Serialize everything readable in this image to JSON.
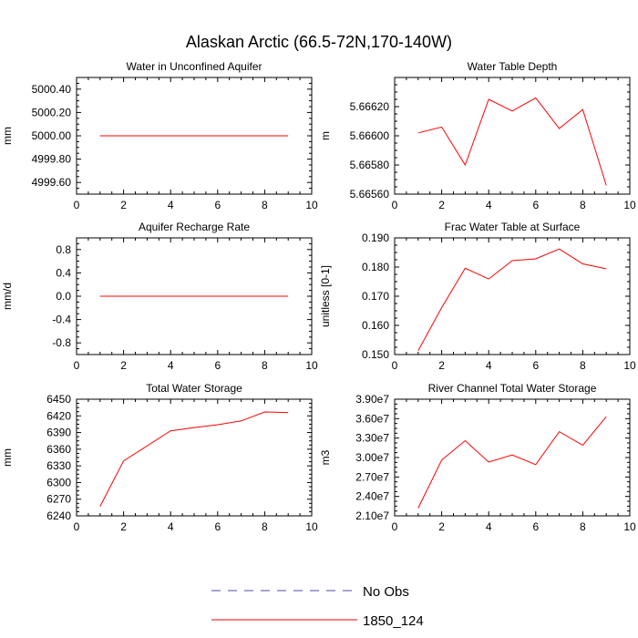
{
  "title": "Alaskan Arctic (66.5-72N,170-140W)",
  "legend": {
    "entries": [
      {
        "label": "No Obs",
        "color": "#4a4aa8",
        "style": "dashed"
      },
      {
        "label": "1850_124",
        "color": "#ff0000",
        "style": "solid"
      }
    ]
  },
  "chart_data": [
    {
      "type": "line",
      "title": "Water in Unconfined Aquifer",
      "ylabel": "mm",
      "xlim": [
        0,
        10
      ],
      "ylim": [
        4999.5,
        5000.5
      ],
      "xticks": [
        0,
        2,
        4,
        6,
        8,
        10
      ],
      "yticks": [
        4999.6,
        4999.8,
        5000.0,
        5000.2,
        5000.4
      ],
      "ytick_labels": [
        "4999.60",
        "4999.80",
        "5000.00",
        "5000.20",
        "5000.40"
      ],
      "x": [
        1,
        2,
        3,
        4,
        5,
        6,
        7,
        8,
        9
      ],
      "series": [
        {
          "name": "1850_124",
          "color": "#ff0000",
          "values": [
            5000,
            5000,
            5000,
            5000,
            5000,
            5000,
            5000,
            5000,
            5000
          ]
        }
      ]
    },
    {
      "type": "line",
      "title": "Water Table Depth",
      "ylabel": "m",
      "xlim": [
        0,
        10
      ],
      "ylim": [
        5.6656,
        5.6664
      ],
      "xticks": [
        0,
        2,
        4,
        6,
        8,
        10
      ],
      "yticks": [
        5.6656,
        5.6658,
        5.666,
        5.6662
      ],
      "ytick_labels": [
        "5.66560",
        "5.66580",
        "5.66600",
        "5.66620"
      ],
      "x": [
        1,
        2,
        3,
        4,
        5,
        6,
        7,
        8,
        9
      ],
      "series": [
        {
          "name": "1850_124",
          "color": "#ff0000",
          "values": [
            5.66602,
            5.66606,
            5.6658,
            5.66625,
            5.66617,
            5.66626,
            5.66605,
            5.66618,
            5.66566
          ]
        }
      ]
    },
    {
      "type": "line",
      "title": "Aquifer Recharge Rate",
      "ylabel": "mm/d",
      "xlim": [
        0,
        10
      ],
      "ylim": [
        -1,
        1
      ],
      "xticks": [
        0,
        2,
        4,
        6,
        8,
        10
      ],
      "yticks": [
        -0.8,
        -0.4,
        0,
        0.4,
        0.8
      ],
      "ytick_labels": [
        "-0.8",
        "-0.4",
        "0.0",
        "0.4",
        "0.8"
      ],
      "x": [
        1,
        2,
        3,
        4,
        5,
        6,
        7,
        8,
        9
      ],
      "series": [
        {
          "name": "1850_124",
          "color": "#ff0000",
          "values": [
            0,
            0,
            0,
            0,
            0,
            0,
            0,
            0,
            0
          ]
        }
      ]
    },
    {
      "type": "line",
      "title": "Frac Water Table at Surface",
      "ylabel": "unitless [0-1]",
      "xlim": [
        0,
        10
      ],
      "ylim": [
        0.15,
        0.19
      ],
      "xticks": [
        0,
        2,
        4,
        6,
        8,
        10
      ],
      "yticks": [
        0.15,
        0.16,
        0.17,
        0.18,
        0.19
      ],
      "ytick_labels": [
        "0.150",
        "0.160",
        "0.170",
        "0.180",
        "0.190"
      ],
      "x": [
        1,
        2,
        3,
        4,
        5,
        6,
        7,
        8,
        9
      ],
      "series": [
        {
          "name": "1850_124",
          "color": "#ff0000",
          "values": [
            0.1513,
            0.1661,
            0.1796,
            0.1759,
            0.1822,
            0.1828,
            0.1862,
            0.1811,
            0.1794
          ]
        }
      ]
    },
    {
      "type": "line",
      "title": "Total Water Storage",
      "ylabel": "mm",
      "xlim": [
        0,
        10
      ],
      "ylim": [
        6240,
        6450
      ],
      "xticks": [
        0,
        2,
        4,
        6,
        8,
        10
      ],
      "yticks": [
        6240,
        6270,
        6300,
        6330,
        6360,
        6390,
        6420,
        6450
      ],
      "ytick_labels": [
        "6240",
        "6270",
        "6300",
        "6330",
        "6360",
        "6390",
        "6420",
        "6450"
      ],
      "x": [
        1,
        2,
        4,
        5,
        6,
        7,
        8,
        9
      ],
      "series": [
        {
          "name": "1850_124",
          "color": "#ff0000",
          "values": [
            6257,
            6339,
            6393,
            6399,
            6404,
            6411,
            6427,
            6426
          ]
        }
      ]
    },
    {
      "type": "line",
      "title": "River Channel Total Water Storage",
      "ylabel": "m3",
      "xlim": [
        0,
        10
      ],
      "ylim": [
        21000000,
        39000000
      ],
      "xticks": [
        0,
        2,
        4,
        6,
        8,
        10
      ],
      "yticks": [
        21000000,
        24000000,
        27000000,
        30000000,
        33000000,
        36000000,
        39000000
      ],
      "ytick_labels": [
        "2.10e7",
        "2.40e7",
        "2.70e7",
        "3.00e7",
        "3.30e7",
        "3.60e7",
        "3.90e7"
      ],
      "x": [
        1,
        2,
        3,
        4,
        5,
        6,
        7,
        8,
        9
      ],
      "series": [
        {
          "name": "1850_124",
          "color": "#ff0000",
          "values": [
            22200000,
            29600000,
            32600000,
            29300000,
            30400000,
            28900000,
            34000000,
            31900000,
            36300000
          ]
        }
      ]
    }
  ]
}
